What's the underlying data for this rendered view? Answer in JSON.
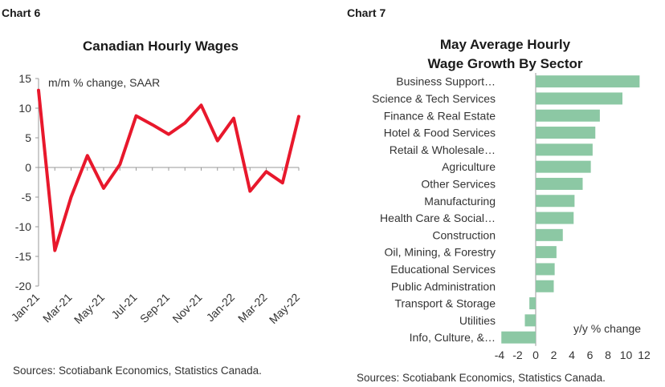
{
  "chart6": {
    "number": "Chart 6",
    "source": "Sources: Scotiabank Economics, Statistics Canada."
  },
  "chart7": {
    "number": "Chart 7",
    "title_line1": "May Average Hourly",
    "title_line2": "Wage Growth By Sector",
    "source": "Sources: Scotiabank Economics, Statistics Canada."
  },
  "chart_data": [
    {
      "type": "line",
      "title": "Canadian Hourly Wages",
      "ylabel": "m/m % change, SAAR",
      "xlabel": "",
      "ylim": [
        -20,
        15
      ],
      "yticks": [
        15,
        10,
        5,
        0,
        -5,
        -10,
        -15,
        -20
      ],
      "x": [
        "Jan-21",
        "Feb-21",
        "Mar-21",
        "Apr-21",
        "May-21",
        "Jun-21",
        "Jul-21",
        "Aug-21",
        "Sep-21",
        "Oct-21",
        "Nov-21",
        "Dec-21",
        "Jan-22",
        "Feb-22",
        "Mar-22",
        "Apr-22",
        "May-22"
      ],
      "xtick_labels": [
        "Jan-21",
        "Mar-21",
        "May-21",
        "Jul-21",
        "Sep-21",
        "Nov-21",
        "Jan-22",
        "Mar-22",
        "May-22"
      ],
      "series": [
        {
          "name": "Canadian Hourly Wages",
          "color": "#e8182c",
          "values": [
            13,
            -14,
            -5,
            2,
            -3.5,
            0.5,
            8.7,
            7.2,
            5.6,
            7.5,
            10.5,
            4.5,
            8.3,
            -4,
            -0.7,
            -2.6,
            8.6
          ]
        }
      ],
      "grid": false
    },
    {
      "type": "bar",
      "orientation": "horizontal",
      "title": "May Average Hourly Wage Growth By Sector",
      "xlabel": "y/y % change",
      "ylabel": "",
      "xlim": [
        -4,
        12
      ],
      "xticks": [
        -4,
        -2,
        0,
        2,
        4,
        6,
        8,
        10,
        12
      ],
      "categories": [
        "Business Support…",
        "Science & Tech Services",
        "Finance & Real Estate",
        "Hotel & Food Services",
        "Retail & Wholesale…",
        "Agriculture",
        "Other Services",
        "Manufacturing",
        "Health Care & Social…",
        "Construction",
        "Oil, Mining, & Forestry",
        "Educational Services",
        "Public Administration",
        "Transport & Storage",
        "Utilities",
        "Info, Culture, &…"
      ],
      "values": [
        11.5,
        9.6,
        7.1,
        6.6,
        6.3,
        6.1,
        5.2,
        4.3,
        4.2,
        3.0,
        2.3,
        2.1,
        2.0,
        -0.7,
        -1.2,
        -3.8
      ],
      "bar_color": "#8cc8a4",
      "grid": false
    }
  ]
}
